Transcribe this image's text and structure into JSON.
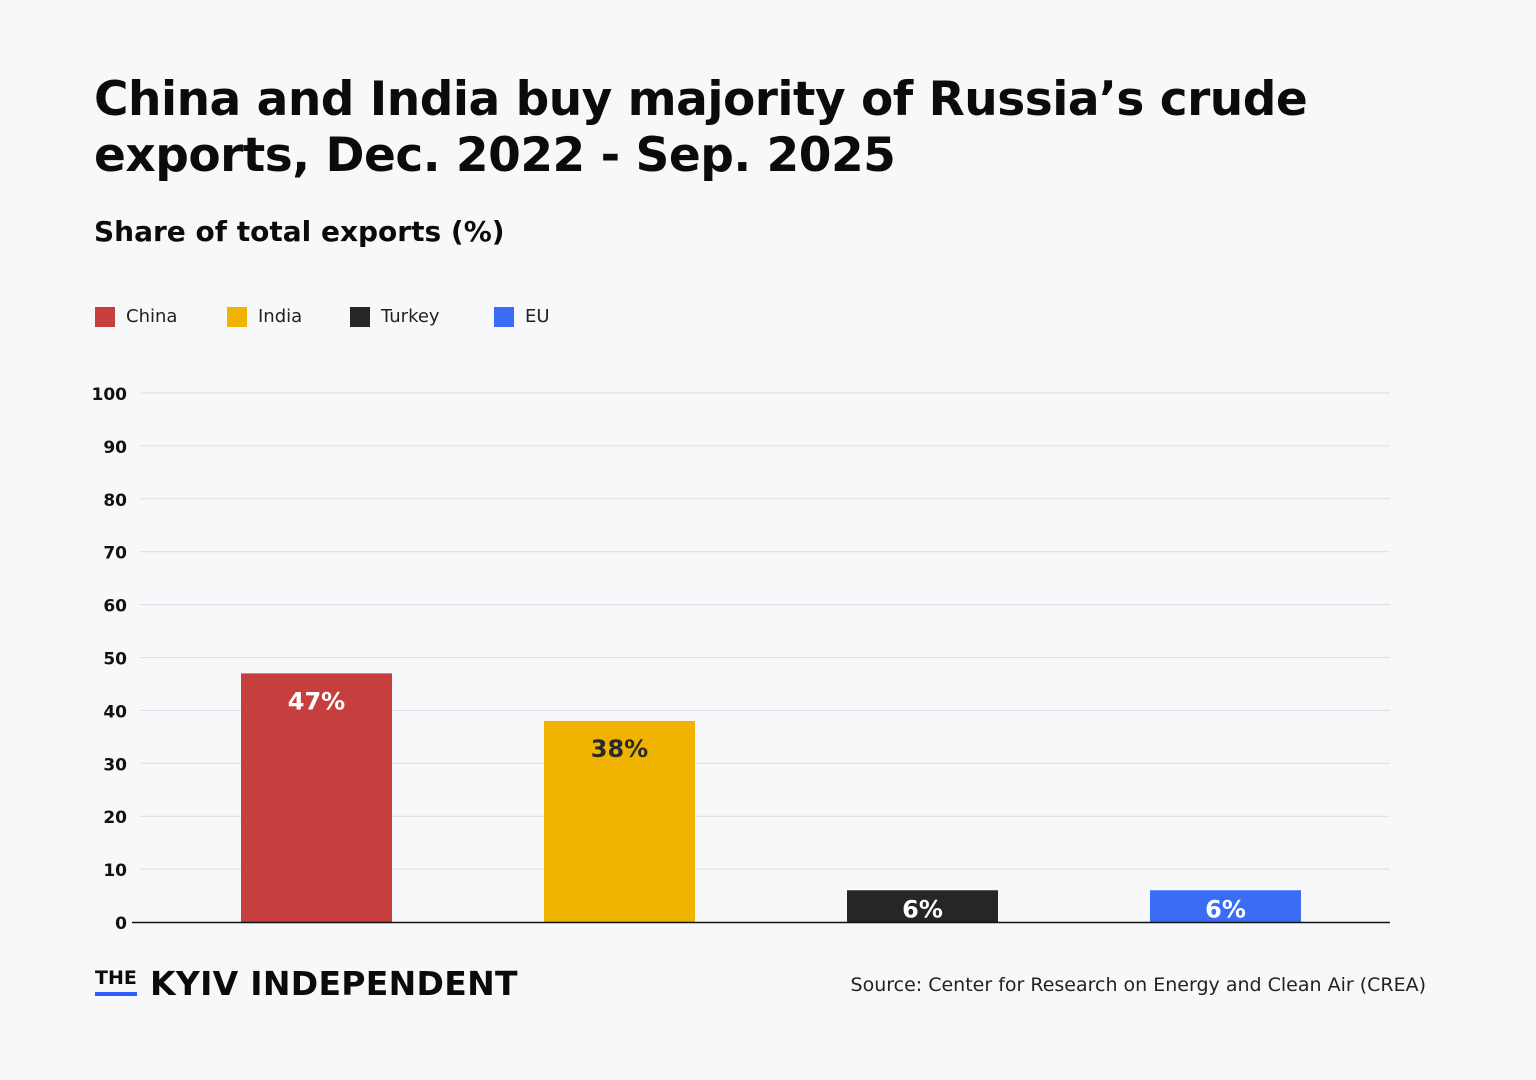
{
  "title": "China and India buy majority of Russia’s crude exports, Dec. 2022 - Sep. 2025",
  "subtitle": "Share of total exports (%)",
  "legend": [
    {
      "label": "China",
      "color": "#c73e3e"
    },
    {
      "label": "India",
      "color": "#f0b400"
    },
    {
      "label": "Turkey",
      "color": "#262626"
    },
    {
      "label": "EU",
      "color": "#3b6cf6"
    }
  ],
  "chart_data": {
    "type": "bar",
    "categories": [
      "China",
      "India",
      "Turkey",
      "EU"
    ],
    "values": [
      47,
      38,
      6,
      6
    ],
    "data_labels": [
      "47%",
      "38%",
      "6%",
      "6%"
    ],
    "colors": [
      "#c73e3e",
      "#f0b400",
      "#262626",
      "#3b6cf6"
    ],
    "label_colors": [
      "#ffffff",
      "#2a2a2a",
      "#ffffff",
      "#ffffff"
    ],
    "ylim": [
      0,
      100
    ],
    "yticks": [
      "0",
      "10",
      "20",
      "30",
      "40",
      "50",
      "60",
      "70",
      "80",
      "90",
      "100"
    ],
    "grid": true,
    "legend_position": "top-left"
  },
  "footer": {
    "logo_the": "THE",
    "logo_name": "KYIV INDEPENDENT",
    "source": "Source: Center for Research on Energy and Clean Air (CREA)"
  }
}
